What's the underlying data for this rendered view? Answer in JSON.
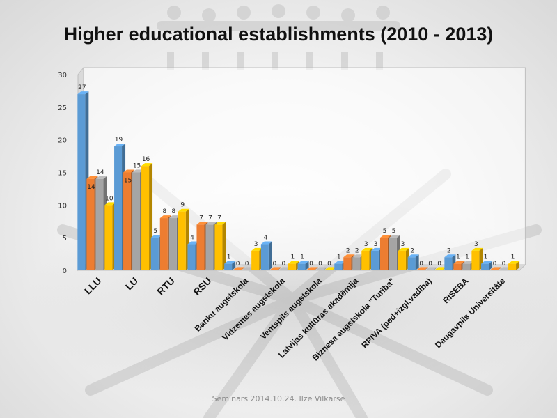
{
  "slide": {
    "title": "Higher educational establishments (2010 - 2013)",
    "footer": "Seminārs 2014.10.24. Ilze Vilkārse"
  },
  "chart_data": {
    "type": "bar",
    "style": "3d-clustered-column",
    "title": "Higher educational establishments (2010 - 2013)",
    "ylim": [
      0,
      30
    ],
    "yticks": [
      0,
      5,
      10,
      15,
      20,
      25,
      30
    ],
    "grid": false,
    "legend": "none",
    "categories": [
      "LLU",
      "LU",
      "RTU",
      "RSU",
      "Banku augstskola",
      "Vidzemes augstskola",
      "Ventspils augstskola",
      "Latvijas kultūras akadēmija",
      "Biznesa augstskola \"Turība\"",
      "RPIVA (ped+izgl.vadība)",
      "RISEBA",
      "Daugavpils Universitāte"
    ],
    "series": [
      {
        "values": [
          27,
          19,
          5,
          4,
          1,
          4,
          1,
          1,
          3,
          2,
          2,
          1
        ],
        "color": "#5b9bd5"
      },
      {
        "values": [
          14,
          15,
          8,
          7,
          0,
          0,
          0,
          2,
          5,
          0,
          1,
          0
        ],
        "color": "#ed7d31"
      },
      {
        "values": [
          14,
          15,
          8,
          7,
          0,
          0,
          0,
          2,
          5,
          0,
          1,
          0
        ],
        "color": "#a5a5a5"
      },
      {
        "values": [
          10,
          16,
          9,
          7,
          3,
          1,
          0,
          3,
          3,
          0,
          3,
          1
        ],
        "color": "#ffc000"
      }
    ]
  }
}
